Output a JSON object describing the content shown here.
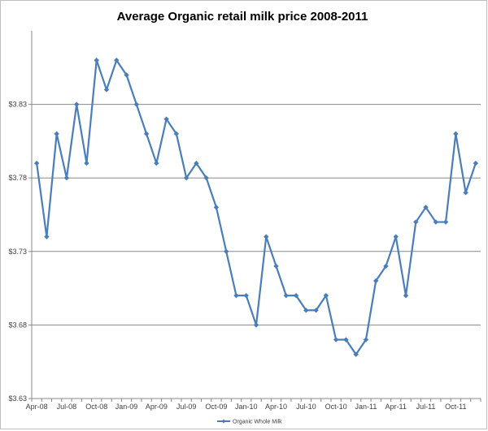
{
  "chart_data": {
    "type": "line",
    "title": "Average Organic retail milk price 2008-2011",
    "xlabel": "",
    "ylabel": "",
    "ylim": [
      3.63,
      3.88
    ],
    "yticks": [
      3.63,
      3.68,
      3.73,
      3.78,
      3.83
    ],
    "ytick_labels": [
      "$3.63",
      "$3.68",
      "$3.73",
      "$3.78",
      "$3.83"
    ],
    "xtick_labels": [
      "Apr-08",
      "Jul-08",
      "Oct-08",
      "Jan-09",
      "Apr-09",
      "Jul-09",
      "Oct-09",
      "Jan-10",
      "Apr-10",
      "Jul-10",
      "Oct-10",
      "Jan-11",
      "Apr-11",
      "Jul-11",
      "Oct-11"
    ],
    "x": [
      "Apr-08",
      "May-08",
      "Jun-08",
      "Jul-08",
      "Aug-08",
      "Sep-08",
      "Oct-08",
      "Nov-08",
      "Dec-08",
      "Jan-09",
      "Feb-09",
      "Mar-09",
      "Apr-09",
      "May-09",
      "Jun-09",
      "Jul-09",
      "Aug-09",
      "Sep-09",
      "Oct-09",
      "Nov-09",
      "Dec-09",
      "Jan-10",
      "Feb-10",
      "Mar-10",
      "Apr-10",
      "May-10",
      "Jun-10",
      "Jul-10",
      "Aug-10",
      "Sep-10",
      "Oct-10",
      "Nov-10",
      "Dec-10",
      "Jan-11",
      "Feb-11",
      "Mar-11",
      "Apr-11",
      "May-11",
      "Jun-11",
      "Jul-11",
      "Aug-11",
      "Sep-11",
      "Oct-11",
      "Nov-11",
      "Dec-11"
    ],
    "series": [
      {
        "name": "Organic Whole Milk",
        "color": "#4a7ebb",
        "values": [
          3.79,
          3.74,
          3.81,
          3.78,
          3.83,
          3.79,
          3.86,
          3.84,
          3.86,
          3.85,
          3.83,
          3.81,
          3.79,
          3.82,
          3.81,
          3.78,
          3.79,
          3.78,
          3.76,
          3.73,
          3.7,
          3.7,
          3.68,
          3.74,
          3.72,
          3.7,
          3.7,
          3.69,
          3.69,
          3.7,
          3.67,
          3.67,
          3.66,
          3.67,
          3.71,
          3.72,
          3.74,
          3.7,
          3.75,
          3.76,
          3.75,
          3.75,
          3.81,
          3.77,
          3.79
        ]
      }
    ],
    "grid": "horizontal",
    "legend": "bottom-center"
  }
}
